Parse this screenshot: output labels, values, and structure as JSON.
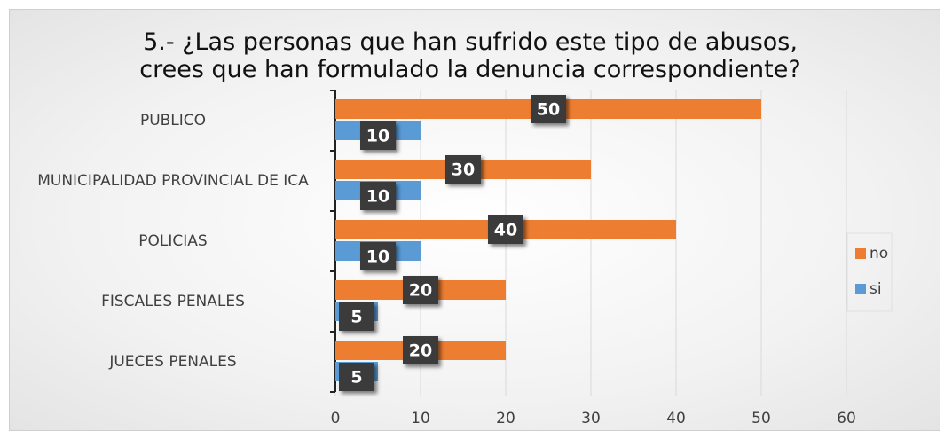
{
  "chart_data": {
    "type": "bar",
    "orientation": "horizontal",
    "title": "5.- ¿Las personas que han sufrido este tipo de abusos, crees que han formulado la denuncia correspondiente?",
    "categories": [
      "PUBLICO",
      "MUNICIPALIDAD PROVINCIAL DE ICA",
      "POLICIAS",
      "FISCALES PENALES",
      "JUECES PENALES"
    ],
    "series": [
      {
        "name": "no",
        "color": "#ed7d31",
        "values": [
          50,
          30,
          40,
          20,
          20
        ]
      },
      {
        "name": "si",
        "color": "#5b9bd5",
        "values": [
          10,
          10,
          10,
          5,
          5
        ]
      }
    ],
    "xlim": [
      0,
      60
    ],
    "xticks": [
      0,
      10,
      20,
      30,
      40,
      50,
      60
    ],
    "grid": true,
    "legend": "right"
  }
}
